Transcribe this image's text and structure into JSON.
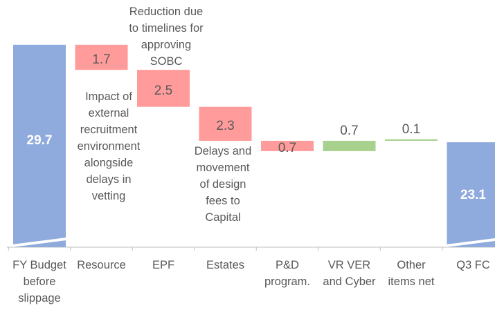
{
  "chart_data": {
    "type": "waterfall",
    "categories": [
      "FY Budget\nbefore\nslippage",
      "Resource",
      "EPF",
      "Estates",
      "P&D\nprogram.",
      "VR VER\nand Cyber",
      "Other\nitems net",
      "Q3 FC"
    ],
    "values": [
      29.7,
      -1.7,
      -2.5,
      -2.3,
      -0.7,
      0.7,
      0.1,
      23.1
    ],
    "value_labels": [
      "29.7",
      "1.7",
      "2.5",
      "2.3",
      "0.7",
      "0.7",
      "0.1",
      "23.1"
    ],
    "colors": {
      "total": "#8faadc",
      "decrease": "#ff9b9b",
      "increase": "#a9d18e"
    },
    "ylim": [
      16,
      32
    ],
    "annotations": [
      "Reduction due\nto timelines for\napproving\nSOBC",
      "Impact of\nexternal\nrecruitment\nenvironment\nalongside\ndelays in\nvetting",
      "Delays and\nmovement\nof design\nfees to\nCapital"
    ]
  }
}
